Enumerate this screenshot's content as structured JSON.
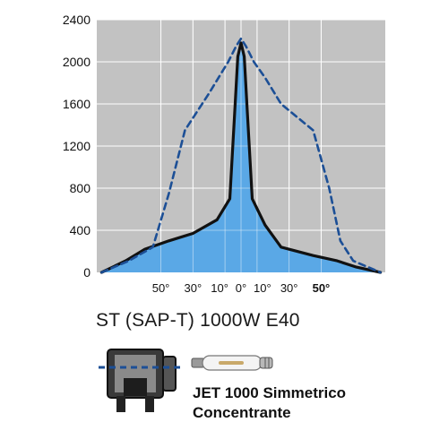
{
  "chart_data": {
    "type": "line",
    "title": "",
    "xlabel": "",
    "ylabel": "",
    "ylim": [
      0,
      2400
    ],
    "xlim": [
      -90,
      90
    ],
    "yticks": [
      "0",
      "400",
      "800",
      "1200",
      "1600",
      "2000",
      "2400"
    ],
    "xtick_labels": [
      {
        "angle": -50,
        "label": "50°",
        "bold": false
      },
      {
        "angle": -30,
        "label": "30°",
        "bold": false
      },
      {
        "angle": -10,
        "label": "10°",
        "bold": false
      },
      {
        "angle": 0,
        "label": "0°",
        "bold": false
      },
      {
        "angle": 10,
        "label": "10°",
        "bold": false
      },
      {
        "angle": 30,
        "label": "30°",
        "bold": false
      },
      {
        "angle": 50,
        "label": "50°",
        "bold": true
      }
    ],
    "grid": true,
    "plot_background": "#c2c2c2",
    "series": [
      {
        "style": "solid",
        "color": "#111111",
        "fill": "#5aa8e6",
        "points": [
          [
            -87,
            0
          ],
          [
            -72,
            110
          ],
          [
            -60,
            220
          ],
          [
            -45,
            300
          ],
          [
            -30,
            370
          ],
          [
            -15,
            500
          ],
          [
            -7,
            700
          ],
          [
            -4,
            1500
          ],
          [
            -2,
            2050
          ],
          [
            0,
            2180
          ],
          [
            2,
            2050
          ],
          [
            4,
            1500
          ],
          [
            7,
            700
          ],
          [
            15,
            450
          ],
          [
            25,
            240
          ],
          [
            45,
            160
          ],
          [
            60,
            110
          ],
          [
            72,
            50
          ],
          [
            87,
            0
          ]
        ]
      },
      {
        "style": "dashed",
        "color": "#1c4f96",
        "points": [
          [
            -87,
            0
          ],
          [
            -70,
            110
          ],
          [
            -55,
            240
          ],
          [
            -45,
            750
          ],
          [
            -35,
            1350
          ],
          [
            -20,
            1700
          ],
          [
            -8,
            2000
          ],
          [
            -3,
            2150
          ],
          [
            0,
            2220
          ],
          [
            3,
            2150
          ],
          [
            8,
            2000
          ],
          [
            15,
            1850
          ],
          [
            25,
            1600
          ],
          [
            45,
            1350
          ],
          [
            55,
            800
          ],
          [
            62,
            300
          ],
          [
            70,
            110
          ],
          [
            87,
            0
          ]
        ]
      }
    ]
  },
  "product": {
    "title": "ST (SAP-T) 1000W  E40",
    "name_line1": "JET 1000 Simmetrico",
    "name_line2": "Concentrante"
  }
}
